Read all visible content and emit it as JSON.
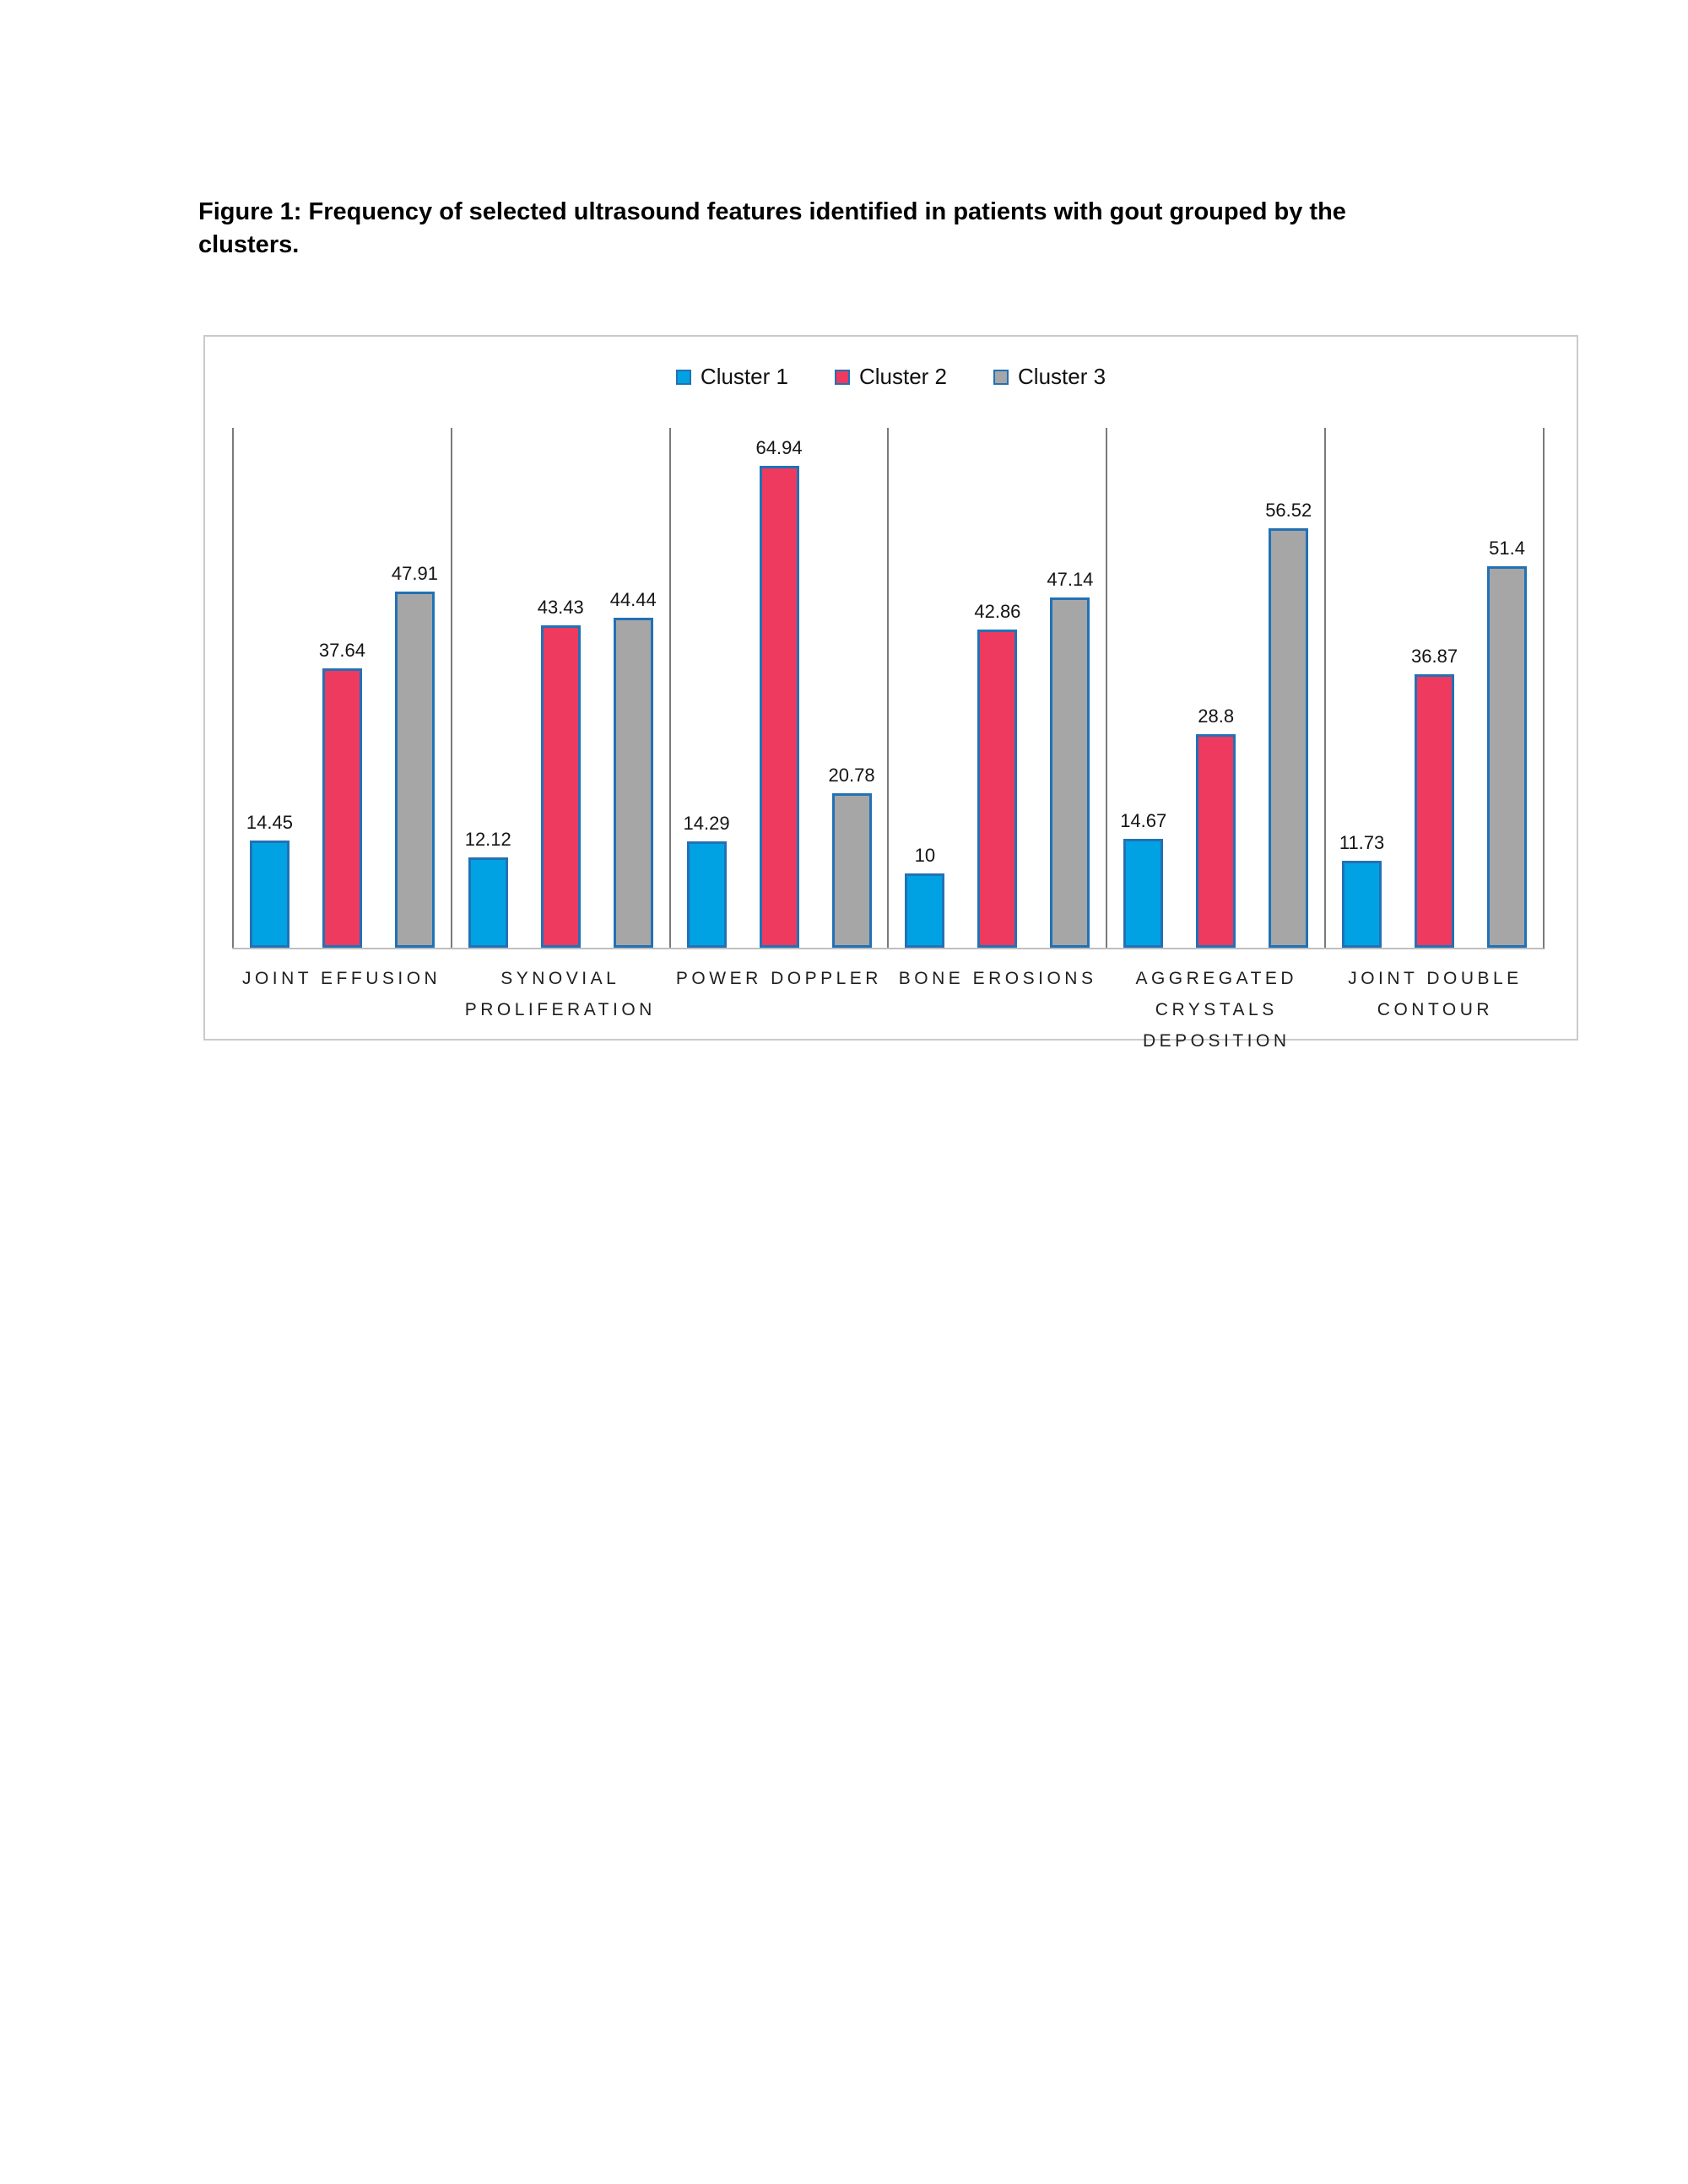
{
  "page": {
    "figure_caption": "Figure 1: Frequency of selected ultrasound features identified in patients with gout grouped by the clusters."
  },
  "chart_data": {
    "type": "bar",
    "title": "",
    "xlabel": "",
    "ylabel": "",
    "ylim": [
      0,
      70
    ],
    "grid": "vertical category separators only",
    "legend_position": "top-center",
    "value_labels": true,
    "bar_border_color": "#2271B5",
    "categories": [
      "JOINT EFFUSION",
      "SYNOVIAL PROLIFERATION",
      "POWER DOPPLER",
      "BONE EROSIONS",
      "AGGREGATED CRYSTALS DEPOSITION",
      "JOINT DOUBLE CONTOUR"
    ],
    "series": [
      {
        "name": "Cluster 1",
        "color": "#00A2E3",
        "values": [
          14.45,
          12.12,
          14.29,
          10,
          14.67,
          11.73
        ]
      },
      {
        "name": "Cluster 2",
        "color": "#EE3A5F",
        "values": [
          37.64,
          43.43,
          64.94,
          42.86,
          28.8,
          36.87
        ]
      },
      {
        "name": "Cluster 3",
        "color": "#A6A6A6",
        "values": [
          47.91,
          44.44,
          20.78,
          47.14,
          56.52,
          51.4
        ]
      }
    ]
  }
}
